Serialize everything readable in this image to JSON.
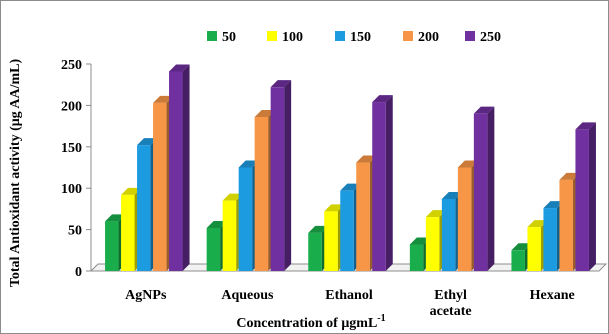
{
  "chart_data": {
    "type": "bar",
    "style": "3d-clustered",
    "categories": [
      [
        "AgNPs"
      ],
      [
        "Aqueous"
      ],
      [
        "Ethanol"
      ],
      [
        "Ethyl",
        "acetate"
      ],
      [
        "Hexane"
      ]
    ],
    "series": [
      {
        "name": "50",
        "color": "#1aad4b",
        "values": [
          60,
          52,
          46,
          32,
          25
        ]
      },
      {
        "name": "100",
        "color": "#ffff00",
        "values": [
          92,
          85,
          72,
          65,
          53
        ]
      },
      {
        "name": "150",
        "color": "#1d9be0",
        "values": [
          152,
          125,
          97,
          87,
          76
        ]
      },
      {
        "name": "200",
        "color": "#f79646",
        "values": [
          203,
          186,
          131,
          125,
          110
        ]
      },
      {
        "name": "250",
        "color": "#7030a0",
        "values": [
          241,
          222,
          204,
          190,
          171
        ]
      }
    ],
    "xlabel": "Concentration of μgmL",
    "xlabel_superscript": "-1",
    "ylabel": "Total Antioxidant activity (μg AA/mL)",
    "ylim": [
      0,
      250
    ],
    "yticks": [
      0,
      50,
      100,
      150,
      200,
      250
    ],
    "legend_position": "top",
    "grid": false
  }
}
